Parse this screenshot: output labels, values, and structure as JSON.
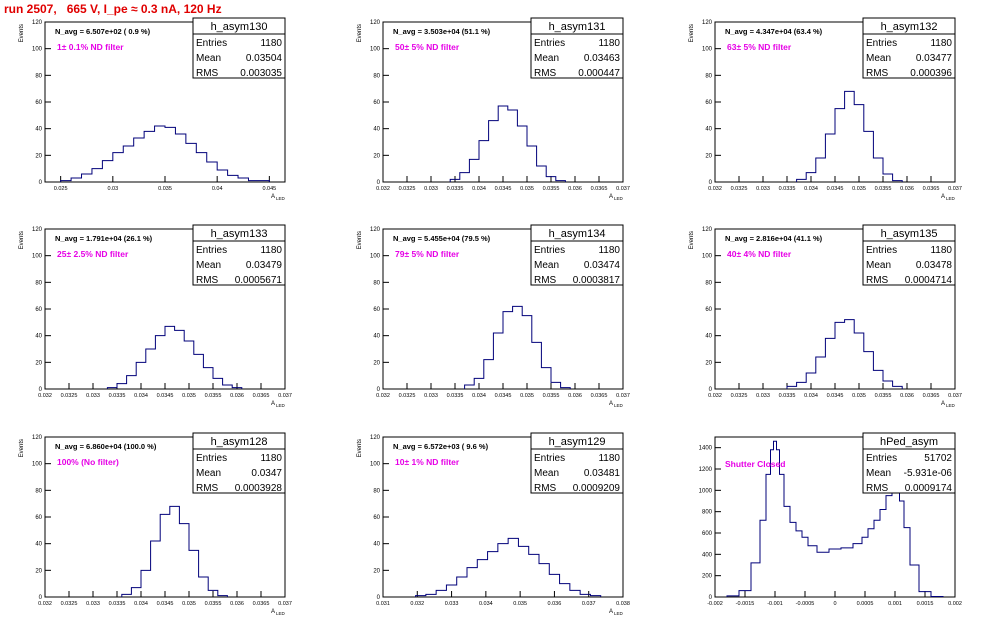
{
  "page": {
    "title": "run 2507,   665 V, I_pe ≈ 0.3 nA, 120 Hz"
  },
  "colors": {
    "hist": "#00007a",
    "filter": "#e600e6",
    "title": "#e00000"
  },
  "stat_labels": {
    "entries": "Entries",
    "mean": "Mean",
    "rms": "RMS"
  },
  "chart_data": [
    {
      "type": "bar",
      "name": "h_asym130",
      "entries": "1180",
      "mean": "0.03504",
      "rms": "0.003035",
      "navg": "N_avg = 6.507e+02 ( 0.9 %)",
      "filter": "1± 0.1% ND filter",
      "ylabel": "Events",
      "xlabel": "A",
      "xlabel_sub": "LED",
      "xlim": [
        0.0235,
        0.0465
      ],
      "ylim": [
        0,
        120
      ],
      "xticks": [
        0.025,
        0.03,
        0.035,
        0.04,
        0.045
      ],
      "xticklabels": [
        "0.025",
        "0.03",
        "0.035",
        "0.04",
        "0.045"
      ],
      "yticks": [
        0,
        20,
        40,
        60,
        80,
        100,
        120
      ],
      "x": [
        0.0255,
        0.0265,
        0.0275,
        0.0285,
        0.0295,
        0.0305,
        0.0315,
        0.0325,
        0.0335,
        0.0345,
        0.0355,
        0.0365,
        0.0375,
        0.0385,
        0.0395,
        0.0405,
        0.0415,
        0.0425,
        0.0435,
        0.0445
      ],
      "values": [
        1,
        3,
        6,
        10,
        16,
        22,
        27,
        33,
        38,
        42,
        41,
        36,
        29,
        22,
        15,
        9,
        5,
        3,
        1,
        1
      ]
    },
    {
      "type": "bar",
      "name": "h_asym131",
      "entries": "1180",
      "mean": "0.03463",
      "rms": "0.000447",
      "navg": "N_avg = 3.503e+04 (51.1 %)",
      "filter": "50± 5% ND filter",
      "ylabel": "Events",
      "xlabel": "A",
      "xlabel_sub": "LED",
      "xlim": [
        0.032,
        0.037
      ],
      "ylim": [
        0,
        120
      ],
      "xticks": [
        0.032,
        0.0325,
        0.033,
        0.0335,
        0.034,
        0.0345,
        0.035,
        0.0355,
        0.036,
        0.0365,
        0.037
      ],
      "xticklabels": [
        "0.032",
        "0.0325",
        "0.033",
        "0.0335",
        "0.034",
        "0.0345",
        "0.035",
        "0.0355",
        "0.036",
        "0.0365",
        "0.037"
      ],
      "yticks": [
        0,
        20,
        40,
        60,
        80,
        100,
        120
      ],
      "x": [
        0.0335,
        0.0337,
        0.0339,
        0.0341,
        0.0343,
        0.0345,
        0.0347,
        0.0349,
        0.0351,
        0.0353,
        0.0355,
        0.0357
      ],
      "values": [
        2,
        7,
        17,
        31,
        46,
        57,
        54,
        42,
        27,
        12,
        4,
        1
      ]
    },
    {
      "type": "bar",
      "name": "h_asym132",
      "entries": "1180",
      "mean": "0.03477",
      "rms": "0.000396",
      "navg": "N_avg = 4.347e+04 (63.4 %)",
      "filter": "63± 5% ND filter",
      "ylabel": "Events",
      "xlabel": "A",
      "xlabel_sub": "LED",
      "xlim": [
        0.032,
        0.037
      ],
      "ylim": [
        0,
        120
      ],
      "xticks": [
        0.032,
        0.0325,
        0.033,
        0.0335,
        0.034,
        0.0345,
        0.035,
        0.0355,
        0.036,
        0.0365,
        0.037
      ],
      "xticklabels": [
        "0.032",
        "0.0325",
        "0.033",
        "0.0335",
        "0.034",
        "0.0345",
        "0.035",
        "0.0355",
        "0.036",
        "0.0365",
        "0.037"
      ],
      "yticks": [
        0,
        20,
        40,
        60,
        80,
        100,
        120
      ],
      "x": [
        0.0338,
        0.034,
        0.0342,
        0.0344,
        0.0346,
        0.0348,
        0.035,
        0.0352,
        0.0354,
        0.0356,
        0.0358
      ],
      "values": [
        2,
        7,
        18,
        36,
        55,
        68,
        58,
        38,
        18,
        6,
        1
      ]
    },
    {
      "type": "bar",
      "name": "h_asym133",
      "entries": "1180",
      "mean": "0.03479",
      "rms": "0.0005671",
      "navg": "N_avg = 1.791e+04 (26.1 %)",
      "filter": "25± 2.5% ND filter",
      "ylabel": "Events",
      "xlabel": "A",
      "xlabel_sub": "LED",
      "xlim": [
        0.032,
        0.037
      ],
      "ylim": [
        0,
        120
      ],
      "xticks": [
        0.032,
        0.0325,
        0.033,
        0.0335,
        0.034,
        0.0345,
        0.035,
        0.0355,
        0.036,
        0.0365,
        0.037
      ],
      "xticklabels": [
        "0.032",
        "0.0325",
        "0.033",
        "0.0335",
        "0.034",
        "0.0345",
        "0.035",
        "0.0355",
        "0.036",
        "0.0365",
        "0.037"
      ],
      "yticks": [
        0,
        20,
        40,
        60,
        80,
        100,
        120
      ],
      "x": [
        0.0334,
        0.0336,
        0.0338,
        0.034,
        0.0342,
        0.0344,
        0.0346,
        0.0348,
        0.035,
        0.0352,
        0.0354,
        0.0356,
        0.0358,
        0.036
      ],
      "values": [
        1,
        4,
        10,
        20,
        30,
        40,
        47,
        44,
        36,
        26,
        16,
        8,
        3,
        1
      ]
    },
    {
      "type": "bar",
      "name": "h_asym134",
      "entries": "1180",
      "mean": "0.03474",
      "rms": "0.0003817",
      "navg": "N_avg = 5.455e+04 (79.5 %)",
      "filter": "79± 5% ND filter",
      "ylabel": "Events",
      "xlabel": "A",
      "xlabel_sub": "LED",
      "xlim": [
        0.032,
        0.037
      ],
      "ylim": [
        0,
        120
      ],
      "xticks": [
        0.032,
        0.0325,
        0.033,
        0.0335,
        0.034,
        0.0345,
        0.035,
        0.0355,
        0.036,
        0.0365,
        0.037
      ],
      "xticklabels": [
        "0.032",
        "0.0325",
        "0.033",
        "0.0335",
        "0.034",
        "0.0345",
        "0.035",
        "0.0355",
        "0.036",
        "0.0365",
        "0.037"
      ],
      "yticks": [
        0,
        20,
        40,
        60,
        80,
        100,
        120
      ],
      "x": [
        0.0338,
        0.034,
        0.0342,
        0.0344,
        0.0346,
        0.0348,
        0.035,
        0.0352,
        0.0354,
        0.0356,
        0.0358
      ],
      "values": [
        3,
        8,
        22,
        42,
        58,
        62,
        55,
        35,
        16,
        5,
        1
      ]
    },
    {
      "type": "bar",
      "name": "h_asym135",
      "entries": "1180",
      "mean": "0.03478",
      "rms": "0.0004714",
      "navg": "N_avg = 2.816e+04 (41.1 %)",
      "filter": "40± 4% ND filter",
      "ylabel": "Events",
      "xlabel": "A",
      "xlabel_sub": "LED",
      "xlim": [
        0.032,
        0.037
      ],
      "ylim": [
        0,
        120
      ],
      "xticks": [
        0.032,
        0.0325,
        0.033,
        0.0335,
        0.034,
        0.0345,
        0.035,
        0.0355,
        0.036,
        0.0365,
        0.037
      ],
      "xticklabels": [
        "0.032",
        "0.0325",
        "0.033",
        "0.0335",
        "0.034",
        "0.0345",
        "0.035",
        "0.0355",
        "0.036",
        "0.0365",
        "0.037"
      ],
      "yticks": [
        0,
        20,
        40,
        60,
        80,
        100,
        120
      ],
      "x": [
        0.0336,
        0.0338,
        0.034,
        0.0342,
        0.0344,
        0.0346,
        0.0348,
        0.035,
        0.0352,
        0.0354,
        0.0356,
        0.0358
      ],
      "values": [
        2,
        5,
        12,
        24,
        38,
        50,
        52,
        42,
        28,
        14,
        6,
        2
      ]
    },
    {
      "type": "bar",
      "name": "h_asym128",
      "entries": "1180",
      "mean": "0.0347",
      "rms": "0.0003928",
      "navg": "N_avg = 6.860e+04 (100.0 %)",
      "filter": "100% (No filter)",
      "ylabel": "Events",
      "xlabel": "A",
      "xlabel_sub": "LED",
      "xlim": [
        0.032,
        0.037
      ],
      "ylim": [
        0,
        120
      ],
      "xticks": [
        0.032,
        0.0325,
        0.033,
        0.0335,
        0.034,
        0.0345,
        0.035,
        0.0355,
        0.036,
        0.0365,
        0.037
      ],
      "xticklabels": [
        "0.032",
        "0.0325",
        "0.033",
        "0.0335",
        "0.034",
        "0.0345",
        "0.035",
        "0.0355",
        "0.036",
        "0.0365",
        "0.037"
      ],
      "yticks": [
        0,
        20,
        40,
        60,
        80,
        100,
        120
      ],
      "x": [
        0.0337,
        0.0339,
        0.0341,
        0.0343,
        0.0345,
        0.0347,
        0.0349,
        0.0351,
        0.0353,
        0.0355,
        0.0357
      ],
      "values": [
        2,
        7,
        20,
        42,
        62,
        68,
        55,
        35,
        15,
        5,
        1
      ]
    },
    {
      "type": "bar",
      "name": "h_asym129",
      "entries": "1180",
      "mean": "0.03481",
      "rms": "0.0009209",
      "navg": "N_avg = 6.572e+03 ( 9.6 %)",
      "filter": "10± 1% ND filter",
      "ylabel": "Events",
      "xlabel": "A",
      "xlabel_sub": "LED",
      "xlim": [
        0.031,
        0.038
      ],
      "ylim": [
        0,
        120
      ],
      "xticks": [
        0.031,
        0.032,
        0.033,
        0.034,
        0.035,
        0.036,
        0.037,
        0.038
      ],
      "xticklabels": [
        "0.031",
        "0.032",
        "0.033",
        "0.034",
        "0.035",
        "0.036",
        "0.037",
        "0.038"
      ],
      "yticks": [
        0,
        20,
        40,
        60,
        80,
        100,
        120
      ],
      "x": [
        0.0321,
        0.0324,
        0.0327,
        0.033,
        0.0333,
        0.0336,
        0.0339,
        0.0342,
        0.0345,
        0.0348,
        0.0351,
        0.0354,
        0.0357,
        0.036,
        0.0363,
        0.0366,
        0.0369,
        0.0372
      ],
      "values": [
        1,
        2,
        5,
        9,
        15,
        22,
        28,
        34,
        40,
        44,
        38,
        32,
        25,
        17,
        10,
        5,
        2,
        1
      ]
    },
    {
      "type": "line",
      "name": "hPed_asym",
      "entries": "51702",
      "mean": "-5.931e-06",
      "rms": "0.0009174",
      "navg": "",
      "filter": "Shutter Closed",
      "ylabel": "",
      "xlabel": "",
      "xlabel_sub": "",
      "xlim": [
        -0.002,
        0.002
      ],
      "ylim": [
        0,
        1500
      ],
      "xticks": [
        -0.002,
        -0.0015,
        -0.001,
        -0.0005,
        0,
        0.0005,
        0.001,
        0.0015,
        0.002
      ],
      "xticklabels": [
        "-0.002",
        "-0.0015",
        "-0.001",
        "-0.0005",
        "0",
        "0.0005",
        "0.001",
        "0.0015",
        "0.002"
      ],
      "yticks": [
        0,
        200,
        400,
        600,
        800,
        1000,
        1200,
        1400
      ],
      "x": [
        -0.0017,
        -0.0015,
        -0.0013,
        -0.0012,
        -0.0011,
        -0.00105,
        -0.001,
        -0.00095,
        -0.0009,
        -0.0008,
        -0.0007,
        -0.0006,
        -0.0005,
        -0.0004,
        -0.0002,
        0,
        0.0002,
        0.0004,
        0.0005,
        0.0006,
        0.0007,
        0.0008,
        0.0009,
        0.001,
        0.00105,
        0.0011,
        0.0012,
        0.0013,
        0.0015,
        0.0017
      ],
      "values": [
        10,
        60,
        320,
        720,
        1150,
        1380,
        1460,
        1380,
        1150,
        850,
        700,
        620,
        560,
        480,
        420,
        450,
        460,
        500,
        560,
        640,
        720,
        820,
        950,
        1050,
        1030,
        900,
        650,
        300,
        50,
        5
      ]
    }
  ]
}
